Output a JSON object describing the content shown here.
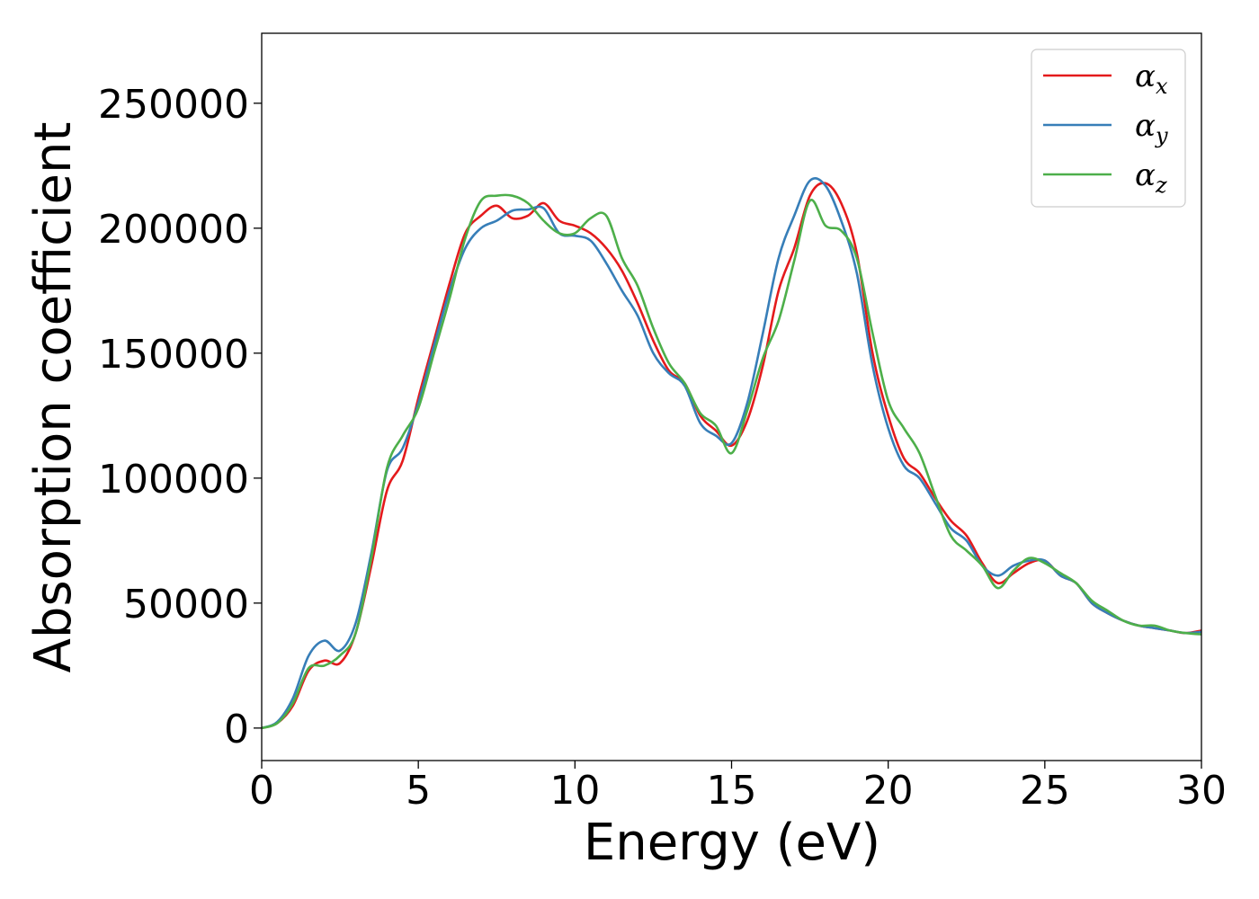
{
  "chart_data": {
    "type": "line",
    "title": "",
    "xlabel": "Energy (eV)",
    "ylabel": "Absorption coefficient",
    "xlim": [
      0,
      30
    ],
    "ylim": [
      -13000,
      278000
    ],
    "xticks": [
      0,
      5,
      10,
      15,
      20,
      25,
      30
    ],
    "yticks": [
      0,
      50000,
      100000,
      150000,
      200000,
      250000
    ],
    "grid": false,
    "legend_position": "top-right",
    "series": [
      {
        "name": "αx",
        "name_base": "α",
        "name_sub": "x",
        "color": "#e41a1c",
        "x": [
          0,
          0.5,
          1.0,
          1.5,
          2.0,
          2.5,
          3.0,
          3.5,
          4.0,
          4.5,
          5.0,
          5.5,
          6.0,
          6.5,
          7.0,
          7.5,
          8.0,
          8.5,
          9.0,
          9.5,
          10.0,
          10.5,
          11.0,
          11.5,
          12.0,
          12.5,
          13.0,
          13.5,
          14.0,
          14.5,
          15.0,
          15.5,
          16.0,
          16.5,
          17.0,
          17.5,
          18.0,
          18.5,
          19.0,
          19.5,
          20.0,
          20.5,
          21.0,
          21.5,
          22.0,
          22.5,
          23.0,
          23.5,
          24.0,
          24.5,
          25.0,
          25.5,
          26.0,
          26.5,
          27.0,
          27.5,
          28.0,
          28.5,
          29.0,
          29.5,
          30.0
        ],
        "y": [
          0,
          2000,
          9000,
          23000,
          27000,
          26000,
          38000,
          65000,
          95000,
          107000,
          132000,
          155000,
          178000,
          198000,
          205000,
          209000,
          204000,
          205000,
          210000,
          203000,
          201000,
          198000,
          192000,
          183000,
          170000,
          155000,
          143000,
          138000,
          125000,
          119000,
          113000,
          123000,
          145000,
          175000,
          192000,
          213000,
          218000,
          210000,
          190000,
          150000,
          125000,
          108000,
          102000,
          92000,
          83000,
          77000,
          66000,
          58000,
          62000,
          66000,
          67000,
          61000,
          58000,
          50000,
          46000,
          43000,
          41000,
          40000,
          39000,
          38000,
          39000
        ]
      },
      {
        "name": "αy",
        "name_base": "α",
        "name_sub": "y",
        "color": "#377eb8",
        "x": [
          0,
          0.5,
          1.0,
          1.5,
          2.0,
          2.5,
          3.0,
          3.5,
          4.0,
          4.5,
          5.0,
          5.5,
          6.0,
          6.5,
          7.0,
          7.5,
          8.0,
          8.5,
          9.0,
          9.5,
          10.0,
          10.5,
          11.0,
          11.5,
          12.0,
          12.5,
          13.0,
          13.5,
          14.0,
          14.5,
          15.0,
          15.5,
          16.0,
          16.5,
          17.0,
          17.5,
          18.0,
          18.5,
          19.0,
          19.5,
          20.0,
          20.5,
          21.0,
          21.5,
          22.0,
          22.5,
          23.0,
          23.5,
          24.0,
          24.5,
          25.0,
          25.5,
          26.0,
          26.5,
          27.0,
          27.5,
          28.0,
          28.5,
          29.0,
          29.5,
          30.0
        ],
        "y": [
          0,
          2500,
          12000,
          29000,
          35000,
          31000,
          42000,
          70000,
          103000,
          112000,
          130000,
          153000,
          175000,
          192000,
          200000,
          203000,
          207000,
          207500,
          208000,
          198000,
          197000,
          195000,
          186000,
          175000,
          165000,
          150000,
          142000,
          137000,
          122000,
          117000,
          114000,
          130000,
          158000,
          188000,
          205000,
          219000,
          217000,
          203000,
          182000,
          145000,
          120000,
          105000,
          100000,
          90000,
          80000,
          75000,
          65000,
          61000,
          65000,
          67000,
          67000,
          61000,
          58000,
          50000,
          46000,
          43000,
          41000,
          40000,
          39000,
          38000,
          38500
        ]
      },
      {
        "name": "αz",
        "name_base": "α",
        "name_sub": "z",
        "color": "#4daf4a",
        "x": [
          0,
          0.5,
          1.0,
          1.5,
          2.0,
          2.5,
          3.0,
          3.5,
          4.0,
          4.5,
          5.0,
          5.5,
          6.0,
          6.5,
          7.0,
          7.5,
          8.0,
          8.5,
          9.0,
          9.5,
          10.0,
          10.5,
          11.0,
          11.5,
          12.0,
          12.5,
          13.0,
          13.5,
          14.0,
          14.5,
          15.0,
          15.5,
          16.0,
          16.5,
          17.0,
          17.5,
          18.0,
          18.5,
          19.0,
          19.5,
          20.0,
          20.5,
          21.0,
          21.5,
          22.0,
          22.5,
          23.0,
          23.5,
          24.0,
          24.5,
          25.0,
          25.5,
          26.0,
          26.5,
          27.0,
          27.5,
          28.0,
          28.5,
          29.0,
          29.5,
          30.0
        ],
        "y": [
          0,
          2000,
          10000,
          24000,
          25000,
          29000,
          38000,
          68000,
          104000,
          117000,
          128000,
          150000,
          172000,
          196000,
          211000,
          213000,
          213000,
          210000,
          203000,
          198000,
          198000,
          204000,
          205000,
          188000,
          177000,
          160000,
          146000,
          138000,
          126000,
          121000,
          110000,
          127000,
          148000,
          163000,
          187000,
          211000,
          201000,
          199000,
          188000,
          158000,
          131000,
          120000,
          110000,
          93000,
          77000,
          71000,
          65000,
          56000,
          63000,
          68000,
          66000,
          62000,
          58000,
          51000,
          47000,
          43000,
          41000,
          41000,
          39000,
          38000,
          37500
        ]
      }
    ]
  }
}
